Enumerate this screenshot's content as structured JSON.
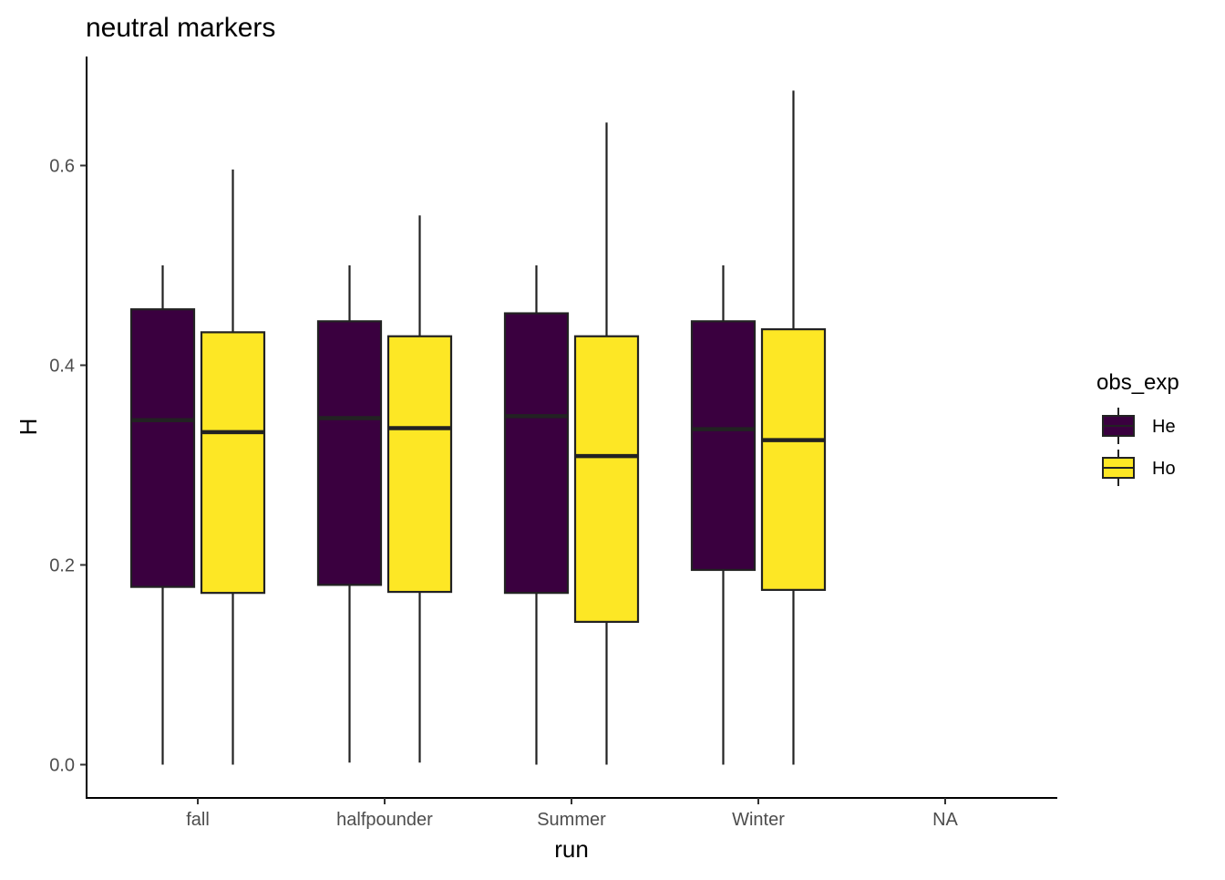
{
  "chart_data": {
    "type": "boxplot",
    "title": "neutral markers",
    "xlabel": "run",
    "ylabel": "H",
    "categories": [
      "fall",
      "halfpounder",
      "Summer",
      "Winter",
      "NA"
    ],
    "yticks": [
      "0.0",
      "0.2",
      "0.4",
      "0.6"
    ],
    "ytick_values": [
      0.0,
      0.2,
      0.4,
      0.6
    ],
    "ylim": [
      -0.033,
      0.71
    ],
    "grid": false,
    "legend": {
      "title": "obs_exp",
      "position": "right",
      "entries": [
        {
          "label": "He",
          "color": "#440154"
        },
        {
          "label": "Ho",
          "color": "#FDE725"
        }
      ]
    },
    "series": [
      {
        "name": "He",
        "color": "#3A003F",
        "boxes": [
          {
            "category": "fall",
            "min": 0.0,
            "q1": 0.178,
            "median": 0.345,
            "q3": 0.456,
            "max": 0.5
          },
          {
            "category": "halfpounder",
            "min": 0.002,
            "q1": 0.18,
            "median": 0.347,
            "q3": 0.444,
            "max": 0.5
          },
          {
            "category": "Summer",
            "min": 0.0,
            "q1": 0.172,
            "median": 0.349,
            "q3": 0.452,
            "max": 0.5
          },
          {
            "category": "Winter",
            "min": 0.0,
            "q1": 0.195,
            "median": 0.336,
            "q3": 0.444,
            "max": 0.5
          }
        ]
      },
      {
        "name": "Ho",
        "color": "#FDE725",
        "boxes": [
          {
            "category": "fall",
            "min": 0.0,
            "q1": 0.172,
            "median": 0.333,
            "q3": 0.433,
            "max": 0.596
          },
          {
            "category": "halfpounder",
            "min": 0.002,
            "q1": 0.173,
            "median": 0.337,
            "q3": 0.429,
            "max": 0.55
          },
          {
            "category": "Summer",
            "min": 0.0,
            "q1": 0.143,
            "median": 0.309,
            "q3": 0.429,
            "max": 0.643
          },
          {
            "category": "Winter",
            "min": 0.0,
            "q1": 0.175,
            "median": 0.325,
            "q3": 0.436,
            "max": 0.675
          }
        ]
      }
    ]
  }
}
